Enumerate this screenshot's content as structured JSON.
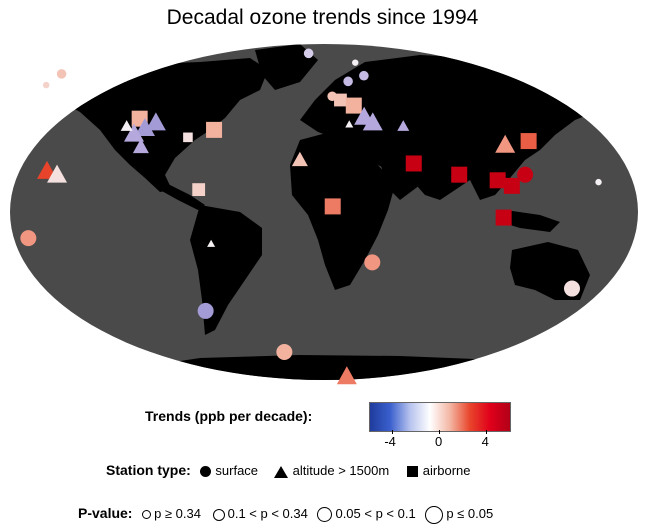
{
  "title": "Decadal ozone trends since 1994",
  "legend": {
    "trend_label": "Trends (ppb per decade):",
    "trend_ticks": [
      {
        "value": -4,
        "label": "-4"
      },
      {
        "value": 0,
        "label": "0"
      },
      {
        "value": 4,
        "label": "4"
      }
    ],
    "station_label": "Station type:",
    "station_types": [
      "surface",
      "altitude > 1500m",
      "airborne"
    ],
    "pvalue_label": "P-value:",
    "pvalue_classes": [
      "p ≥ 0.34",
      "0.1 < p < 0.34",
      "0.05 < p < 0.1",
      "p ≤ 0.05"
    ]
  },
  "colors": {
    "ocean": "#4a4a4a",
    "land": "#000000",
    "strong_positive": "#e0001a",
    "positive": "#f08a74",
    "weak_positive": "#f7c7bc",
    "neutral": "#f4eef2",
    "negative": "#b3a7dd"
  },
  "chart_data": {
    "type": "map",
    "projection": "robinson",
    "color_range": [
      -6,
      6
    ],
    "stations": [
      {
        "lon": -165,
        "lat": 74,
        "type": "surface",
        "trend": 1.5,
        "p": 0.2
      },
      {
        "lon": -172,
        "lat": 68,
        "type": "surface",
        "trend": 1.0,
        "p": 0.4
      },
      {
        "lon": -10,
        "lat": 85,
        "type": "surface",
        "trend": -1.0,
        "p": 0.2
      },
      {
        "lon": 20,
        "lat": 80,
        "type": "surface",
        "trend": 0.0,
        "p": 0.5
      },
      {
        "lon": 15,
        "lat": 70,
        "type": "surface",
        "trend": -1.5,
        "p": 0.3
      },
      {
        "lon": 25,
        "lat": 73,
        "type": "surface",
        "trend": -1.5,
        "p": 0.3
      },
      {
        "lon": 5,
        "lat": 62,
        "type": "surface",
        "trend": 1.5,
        "p": 0.2
      },
      {
        "lon": 10,
        "lat": 60,
        "type": "airborne",
        "trend": 1.5,
        "p": 0.1
      },
      {
        "lon": 18,
        "lat": 57,
        "type": "airborne",
        "trend": 2.0,
        "p": 0.05
      },
      {
        "lon": 24,
        "lat": 51,
        "type": "altitude",
        "trend": -2.0,
        "p": 0.05
      },
      {
        "lon": 29,
        "lat": 48,
        "type": "altitude",
        "trend": -2.0,
        "p": 0.05
      },
      {
        "lon": 15,
        "lat": 47,
        "type": "altitude",
        "trend": 0.0,
        "p": 0.4
      },
      {
        "lon": 47,
        "lat": 46,
        "type": "altitude",
        "trend": -2.0,
        "p": 0.2
      },
      {
        "lon": -110,
        "lat": 50,
        "type": "airborne",
        "trend": 2.0,
        "p": 0.05
      },
      {
        "lon": -100,
        "lat": 48,
        "type": "altitude",
        "trend": -2.5,
        "p": 0.05
      },
      {
        "lon": -106,
        "lat": 45,
        "type": "altitude",
        "trend": -2.5,
        "p": 0.05
      },
      {
        "lon": -112,
        "lat": 42,
        "type": "altitude",
        "trend": -2.0,
        "p": 0.05
      },
      {
        "lon": -117,
        "lat": 46,
        "type": "altitude",
        "trend": 0.0,
        "p": 0.3
      },
      {
        "lon": -107,
        "lat": 35,
        "type": "altitude",
        "trend": -2.0,
        "p": 0.1
      },
      {
        "lon": -80,
        "lat": 40,
        "type": "airborne",
        "trend": 0.5,
        "p": 0.2
      },
      {
        "lon": -65,
        "lat": 44,
        "type": "airborne",
        "trend": 2.0,
        "p": 0.05
      },
      {
        "lon": -160,
        "lat": 22,
        "type": "altitude",
        "trend": 4.0,
        "p": 0.05
      },
      {
        "lon": -154,
        "lat": 20,
        "type": "altitude",
        "trend": 0.5,
        "p": 0.05
      },
      {
        "lon": -14,
        "lat": 28,
        "type": "altitude",
        "trend": 1.5,
        "p": 0.1
      },
      {
        "lon": -72,
        "lat": 12,
        "type": "airborne",
        "trend": 1.0,
        "p": 0.1
      },
      {
        "lon": 5,
        "lat": 3,
        "type": "airborne",
        "trend": 3.0,
        "p": 0.05
      },
      {
        "lon": 52,
        "lat": 26,
        "type": "airborne",
        "trend": 7.0,
        "p": 0.05
      },
      {
        "lon": 78,
        "lat": 20,
        "type": "airborne",
        "trend": 6.0,
        "p": 0.05
      },
      {
        "lon": 106,
        "lat": 36,
        "type": "altitude",
        "trend": 2.5,
        "p": 0.05
      },
      {
        "lon": 120,
        "lat": 38,
        "type": "airborne",
        "trend": 3.5,
        "p": 0.05
      },
      {
        "lon": 100,
        "lat": 17,
        "type": "airborne",
        "trend": 7.0,
        "p": 0.05
      },
      {
        "lon": 108,
        "lat": 14,
        "type": "airborne",
        "trend": 6.0,
        "p": 0.05
      },
      {
        "lon": 116,
        "lat": 20,
        "type": "surface",
        "trend": 6.0,
        "p": 0.05
      },
      {
        "lon": 103,
        "lat": -3,
        "type": "airborne",
        "trend": 6.5,
        "p": 0.05
      },
      {
        "lon": 158,
        "lat": 16,
        "type": "surface",
        "trend": 0.0,
        "p": 0.5
      },
      {
        "lon": -65,
        "lat": -17,
        "type": "altitude",
        "trend": 0.0,
        "p": 0.5
      },
      {
        "lon": -170,
        "lat": -14,
        "type": "surface",
        "trend": 2.5,
        "p": 0.05
      },
      {
        "lon": 28,
        "lat": -27,
        "type": "surface",
        "trend": 2.5,
        "p": 0.05
      },
      {
        "lon": 146,
        "lat": -41,
        "type": "surface",
        "trend": 0.5,
        "p": 0.05
      },
      {
        "lon": -71,
        "lat": -53,
        "type": "surface",
        "trend": -2.5,
        "p": 0.05
      },
      {
        "lon": -25,
        "lat": -75,
        "type": "surface",
        "trend": 2.0,
        "p": 0.05
      },
      {
        "lon": 15,
        "lat": -88,
        "type": "altitude",
        "trend": 3.0,
        "p": 0.05
      }
    ]
  }
}
